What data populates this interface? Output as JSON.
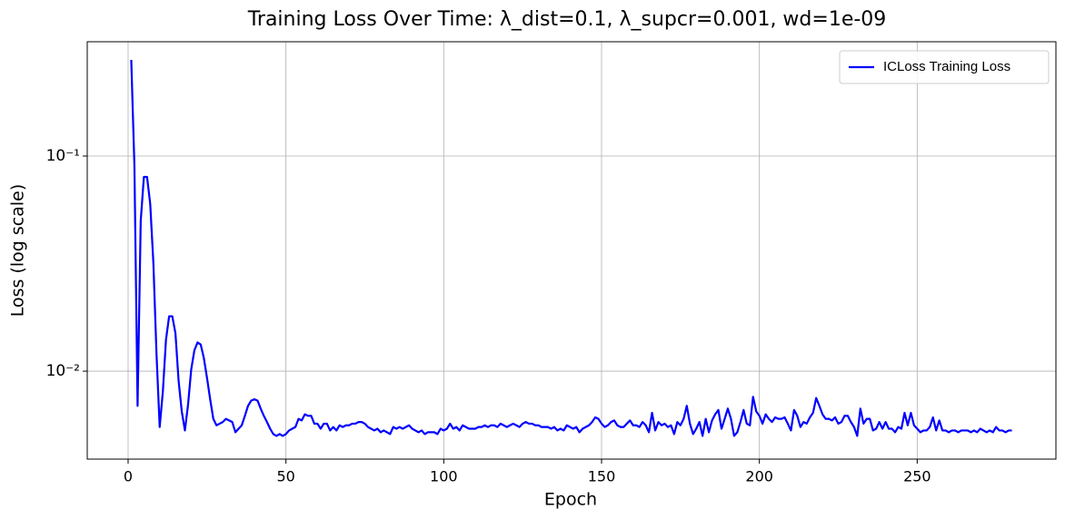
{
  "chart_data": {
    "type": "line",
    "title": "Training Loss Over Time: λ_dist=0.1, λ_supcr=0.001, wd=1e-09",
    "x_label": "Epoch",
    "y_label": "Loss (log scale)",
    "log_y": true,
    "grid": true,
    "legend": "upper right",
    "xlim": [
      -12.95,
      293.95
    ],
    "xticks": [
      0,
      50,
      100,
      150,
      200,
      250
    ],
    "ylim": [
      0.0039,
      0.34
    ],
    "yticks": [
      {
        "value": 0.01,
        "label": "10⁻²"
      },
      {
        "value": 0.1,
        "label": "10⁻¹"
      }
    ],
    "x": [
      1,
      2,
      3,
      4,
      5,
      6,
      7,
      8,
      9,
      10,
      11,
      12,
      13,
      14,
      15,
      16,
      17,
      18,
      19,
      20,
      21,
      22,
      23,
      24,
      25,
      26,
      27,
      28,
      29,
      30,
      31,
      32,
      33,
      34,
      35,
      36,
      37,
      38,
      39,
      40,
      41,
      42,
      43,
      44,
      45,
      46,
      47,
      48,
      49,
      50,
      51,
      52,
      53,
      54,
      55,
      56,
      57,
      58,
      59,
      60,
      61,
      62,
      63,
      64,
      65,
      66,
      67,
      68,
      69,
      70,
      71,
      72,
      73,
      74,
      75,
      76,
      77,
      78,
      79,
      80,
      81,
      82,
      83,
      84,
      85,
      86,
      87,
      88,
      89,
      90,
      91,
      92,
      93,
      94,
      95,
      96,
      97,
      98,
      99,
      100,
      101,
      102,
      103,
      104,
      105,
      106,
      107,
      108,
      109,
      110,
      111,
      112,
      113,
      114,
      115,
      116,
      117,
      118,
      119,
      120,
      121,
      122,
      123,
      124,
      125,
      126,
      127,
      128,
      129,
      130,
      131,
      132,
      133,
      134,
      135,
      136,
      137,
      138,
      139,
      140,
      141,
      142,
      143,
      144,
      145,
      146,
      147,
      148,
      149,
      150,
      151,
      152,
      153,
      154,
      155,
      156,
      157,
      158,
      159,
      160,
      161,
      162,
      163,
      164,
      165,
      166,
      167,
      168,
      169,
      170,
      171,
      172,
      173,
      174,
      175,
      176,
      177,
      178,
      179,
      180,
      181,
      182,
      183,
      184,
      185,
      186,
      187,
      188,
      189,
      190,
      191,
      192,
      193,
      194,
      195,
      196,
      197,
      198,
      199,
      200,
      201,
      202,
      203,
      204,
      205,
      206,
      207,
      208,
      209,
      210,
      211,
      212,
      213,
      214,
      215,
      216,
      217,
      218,
      219,
      220,
      221,
      222,
      223,
      224,
      225,
      226,
      227,
      228,
      229,
      230,
      231,
      232,
      233,
      234,
      235,
      236,
      237,
      238,
      239,
      240,
      241,
      242,
      243,
      244,
      245,
      246,
      247,
      248,
      249,
      250,
      251,
      252,
      253,
      254,
      255,
      256,
      257,
      258,
      259,
      260,
      261,
      262,
      263,
      264,
      265,
      266,
      267,
      268,
      269,
      270,
      271,
      272,
      273,
      274,
      275,
      276,
      277,
      278,
      279,
      280
    ],
    "series": [
      {
        "name": "ICLoss Training Loss",
        "color": "#0000ff",
        "values": [
          0.28,
          0.09,
          0.0069,
          0.05,
          0.08,
          0.08,
          0.06,
          0.032,
          0.012,
          0.0055,
          0.008,
          0.014,
          0.018,
          0.018,
          0.015,
          0.009,
          0.0065,
          0.0053,
          0.007,
          0.0102,
          0.0125,
          0.0136,
          0.0133,
          0.0115,
          0.0093,
          0.0074,
          0.006,
          0.0056,
          0.0057,
          0.0058,
          0.006,
          0.0059,
          0.0058,
          0.0052,
          0.0054,
          0.0056,
          0.0062,
          0.0069,
          0.0073,
          0.0074,
          0.0073,
          0.0067,
          0.0062,
          0.0058,
          0.0054,
          0.0051,
          0.005,
          0.0051,
          0.005,
          0.0051,
          0.0053,
          0.0054,
          0.0055,
          0.006,
          0.0059,
          0.0063,
          0.0062,
          0.0062,
          0.0057,
          0.0057,
          0.0054,
          0.0057,
          0.0057,
          0.0053,
          0.0055,
          0.0053,
          0.0056,
          0.0055,
          0.0056,
          0.0056,
          0.0057,
          0.0057,
          0.0058,
          0.0058,
          0.0057,
          0.0055,
          0.0054,
          0.0053,
          0.0054,
          0.0052,
          0.0053,
          0.0052,
          0.0051,
          0.0055,
          0.0054,
          0.0055,
          0.0054,
          0.0055,
          0.0056,
          0.0054,
          0.0053,
          0.0052,
          0.0053,
          0.0051,
          0.0052,
          0.0052,
          0.0052,
          0.0051,
          0.0054,
          0.0053,
          0.0054,
          0.0057,
          0.0054,
          0.0055,
          0.0053,
          0.0056,
          0.0055,
          0.0054,
          0.0054,
          0.0054,
          0.0055,
          0.0055,
          0.0056,
          0.0055,
          0.0056,
          0.0056,
          0.0055,
          0.0057,
          0.0056,
          0.0055,
          0.0056,
          0.0057,
          0.0056,
          0.0055,
          0.0057,
          0.0058,
          0.0057,
          0.0057,
          0.0056,
          0.0056,
          0.0055,
          0.0055,
          0.0055,
          0.0054,
          0.0055,
          0.0053,
          0.0054,
          0.0053,
          0.0056,
          0.0055,
          0.0054,
          0.0055,
          0.0052,
          0.0054,
          0.0055,
          0.0056,
          0.0058,
          0.0061,
          0.006,
          0.0057,
          0.0055,
          0.0056,
          0.0058,
          0.0059,
          0.0056,
          0.0055,
          0.0055,
          0.0057,
          0.0059,
          0.0056,
          0.0056,
          0.0055,
          0.0058,
          0.0056,
          0.0052,
          0.0064,
          0.0053,
          0.0058,
          0.0056,
          0.0057,
          0.0055,
          0.0056,
          0.0051,
          0.0058,
          0.0056,
          0.006,
          0.0069,
          0.0057,
          0.0051,
          0.0054,
          0.0058,
          0.005,
          0.006,
          0.0052,
          0.0059,
          0.0063,
          0.0066,
          0.0054,
          0.006,
          0.0067,
          0.006,
          0.005,
          0.0052,
          0.0058,
          0.0066,
          0.0057,
          0.0056,
          0.0076,
          0.0065,
          0.0062,
          0.0057,
          0.0063,
          0.006,
          0.0058,
          0.0061,
          0.006,
          0.006,
          0.0061,
          0.0057,
          0.0053,
          0.0066,
          0.0062,
          0.0055,
          0.0058,
          0.0057,
          0.0061,
          0.0064,
          0.0075,
          0.0069,
          0.0063,
          0.006,
          0.006,
          0.0059,
          0.0061,
          0.0057,
          0.0058,
          0.0062,
          0.0062,
          0.0058,
          0.0055,
          0.005,
          0.0067,
          0.0057,
          0.006,
          0.006,
          0.0053,
          0.0054,
          0.0058,
          0.0054,
          0.0058,
          0.0054,
          0.0054,
          0.0052,
          0.0055,
          0.0054,
          0.0064,
          0.0056,
          0.0064,
          0.0056,
          0.0054,
          0.0052,
          0.0053,
          0.0053,
          0.0055,
          0.0061,
          0.0053,
          0.0059,
          0.0053,
          0.0053,
          0.0052,
          0.0053,
          0.0053,
          0.0052,
          0.0053,
          0.0053,
          0.0053,
          0.0052,
          0.0053,
          0.0052,
          0.0054,
          0.0053,
          0.0052,
          0.0053,
          0.0052,
          0.0055,
          0.0053,
          0.0053,
          0.0052,
          0.0053,
          0.0053
        ]
      }
    ]
  }
}
